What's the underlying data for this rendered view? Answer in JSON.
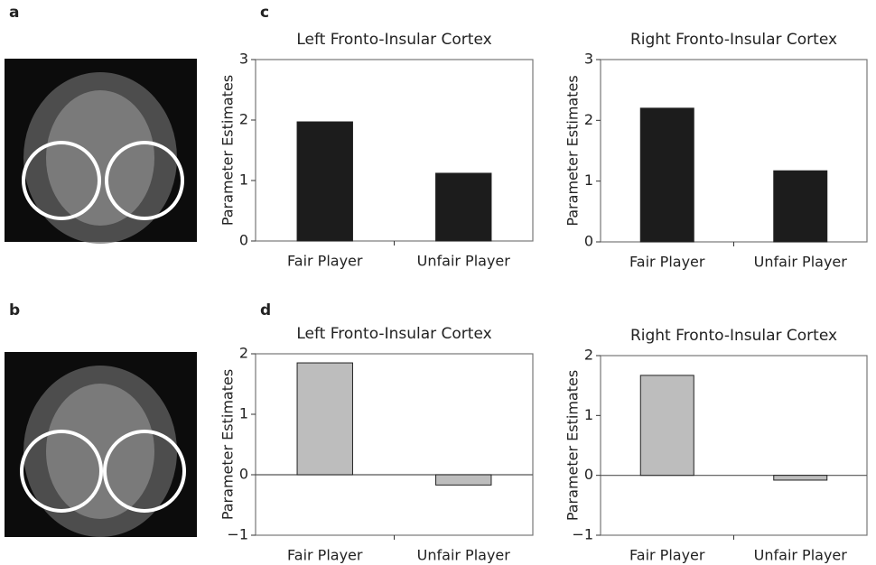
{
  "panels": [
    "a",
    "b",
    "c",
    "d"
  ],
  "chart_data": [
    {
      "type": "bar",
      "title": "Left Fronto-Insular Cortex",
      "y_label": "Parameter Estimates",
      "categories": [
        "Fair Player",
        "Unfair Player"
      ],
      "values": [
        1.97,
        1.12
      ],
      "color": "#1c1c1c",
      "ylim": [
        0,
        3
      ],
      "yticks": [
        0,
        1,
        2,
        3
      ]
    },
    {
      "type": "bar",
      "title": "Right Fronto-Insular Cortex",
      "y_label": "Parameter Estimates",
      "categories": [
        "Fair Player",
        "Unfair Player"
      ],
      "values": [
        2.2,
        1.17
      ],
      "color": "#1c1c1c",
      "ylim": [
        0,
        3
      ],
      "yticks": [
        0,
        1,
        2,
        3
      ]
    },
    {
      "type": "bar",
      "title": "Left Fronto-Insular Cortex",
      "y_label": "Parameter Estimates",
      "categories": [
        "Fair Player",
        "Unfair Player"
      ],
      "values": [
        1.85,
        -0.17
      ],
      "color": "#bdbdbd",
      "ylim": [
        -1,
        2
      ],
      "yticks": [
        {
          "value": -1,
          "label": "−1"
        },
        0,
        1,
        2
      ]
    },
    {
      "type": "bar",
      "title": "Right Fronto-Insular Cortex",
      "y_label": "Parameter Estimates",
      "categories": [
        "Fair Player",
        "Unfair Player"
      ],
      "values": [
        1.67,
        -0.08
      ],
      "color": "#bdbdbd",
      "ylim": [
        -1,
        2
      ],
      "yticks": [
        {
          "value": -1,
          "label": "−1"
        },
        0,
        1,
        2
      ]
    }
  ]
}
